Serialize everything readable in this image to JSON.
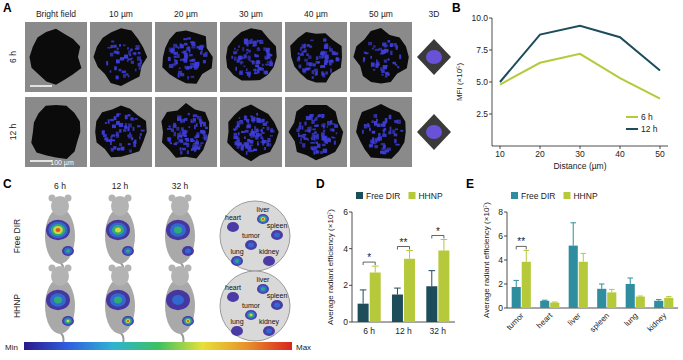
{
  "figure": {
    "panel_a": {
      "panel": "A",
      "columns": [
        "Bright field",
        "10 µm",
        "20 µm",
        "30 µm",
        "40 µm",
        "50 µm",
        "3D"
      ],
      "rows": [
        "6 h",
        "12 h"
      ],
      "scale_bar": "100 µm"
    },
    "panel_c": {
      "panel": "C",
      "columns": [
        "6 h",
        "12 h",
        "32 h"
      ],
      "rows": [
        "Free DIR",
        "HHNP"
      ],
      "organs": [
        "liver",
        "heart",
        "spleen",
        "tumor",
        "lung",
        "kidney"
      ],
      "colorbar": [
        "Min",
        "Max"
      ]
    }
  },
  "chart_data": [
    {
      "panel": "B",
      "type": "line",
      "x_label": "Distance (µm)",
      "y_label": "MFI (×10⁵)",
      "x": [
        10,
        20,
        30,
        40,
        50
      ],
      "xlim": [
        8,
        52
      ],
      "xticks": [
        10,
        20,
        30,
        40,
        50
      ],
      "ylim": [
        0,
        10
      ],
      "yticks": [
        2.5,
        {
          "value": 5,
          "label": "5.0"
        },
        7.5,
        {
          "value": 10,
          "label": "10.0"
        }
      ],
      "series": [
        {
          "name": "6 h",
          "color": "#b5c93a",
          "values": [
            4.8,
            6.5,
            7.2,
            5.3,
            3.7
          ]
        },
        {
          "name": "12 h",
          "color": "#1d4d5b",
          "values": [
            5.0,
            8.7,
            9.4,
            8.5,
            5.9
          ]
        }
      ],
      "legend": "lower right",
      "grid": false
    },
    {
      "panel": "D",
      "type": "bar",
      "y_label": "Average radiant efficiency (×10⁷)",
      "categories": [
        "6 h",
        "12 h",
        "32 h"
      ],
      "ylim": [
        0,
        6
      ],
      "yticks": [
        0,
        2,
        4,
        6
      ],
      "series": [
        {
          "name": "Free DIR",
          "color": "#1d4d5b",
          "values": [
            1.0,
            1.5,
            1.95
          ],
          "errors": [
            0.75,
            0.35,
            0.85
          ]
        },
        {
          "name": "HHNP",
          "color": "#b5c93a",
          "values": [
            2.7,
            3.45,
            3.9
          ],
          "errors": [
            0.35,
            0.45,
            0.6
          ]
        }
      ],
      "annotations": [
        {
          "text": "*",
          "category": "6 h"
        },
        {
          "text": "**",
          "category": "12 h"
        },
        {
          "text": "*",
          "category": "32 h"
        }
      ],
      "legend": "upper left",
      "grid": false
    },
    {
      "panel": "E",
      "type": "bar",
      "y_label": "Average radiant efficiency (×10⁷)",
      "categories": [
        "tumor",
        "heart",
        "liver",
        "spleen",
        "lung",
        "kidney"
      ],
      "ylim": [
        0,
        8
      ],
      "yticks": [
        0,
        2,
        4,
        6,
        8
      ],
      "series": [
        {
          "name": "Free DIR",
          "color": "#2f8da0",
          "values": [
            1.75,
            0.6,
            5.2,
            1.6,
            2.0,
            0.6
          ],
          "errors": [
            0.55,
            0.05,
            1.9,
            0.4,
            0.5,
            0.1
          ]
        },
        {
          "name": "HHNP",
          "color": "#b5c93a",
          "values": [
            3.85,
            0.45,
            3.85,
            1.3,
            0.95,
            0.85
          ],
          "errors": [
            0.95,
            0.05,
            0.7,
            0.25,
            0.05,
            0.1
          ]
        }
      ],
      "annotations": [
        {
          "text": "**",
          "category": "tumor"
        }
      ],
      "legend": "upper left",
      "grid": false
    }
  ]
}
